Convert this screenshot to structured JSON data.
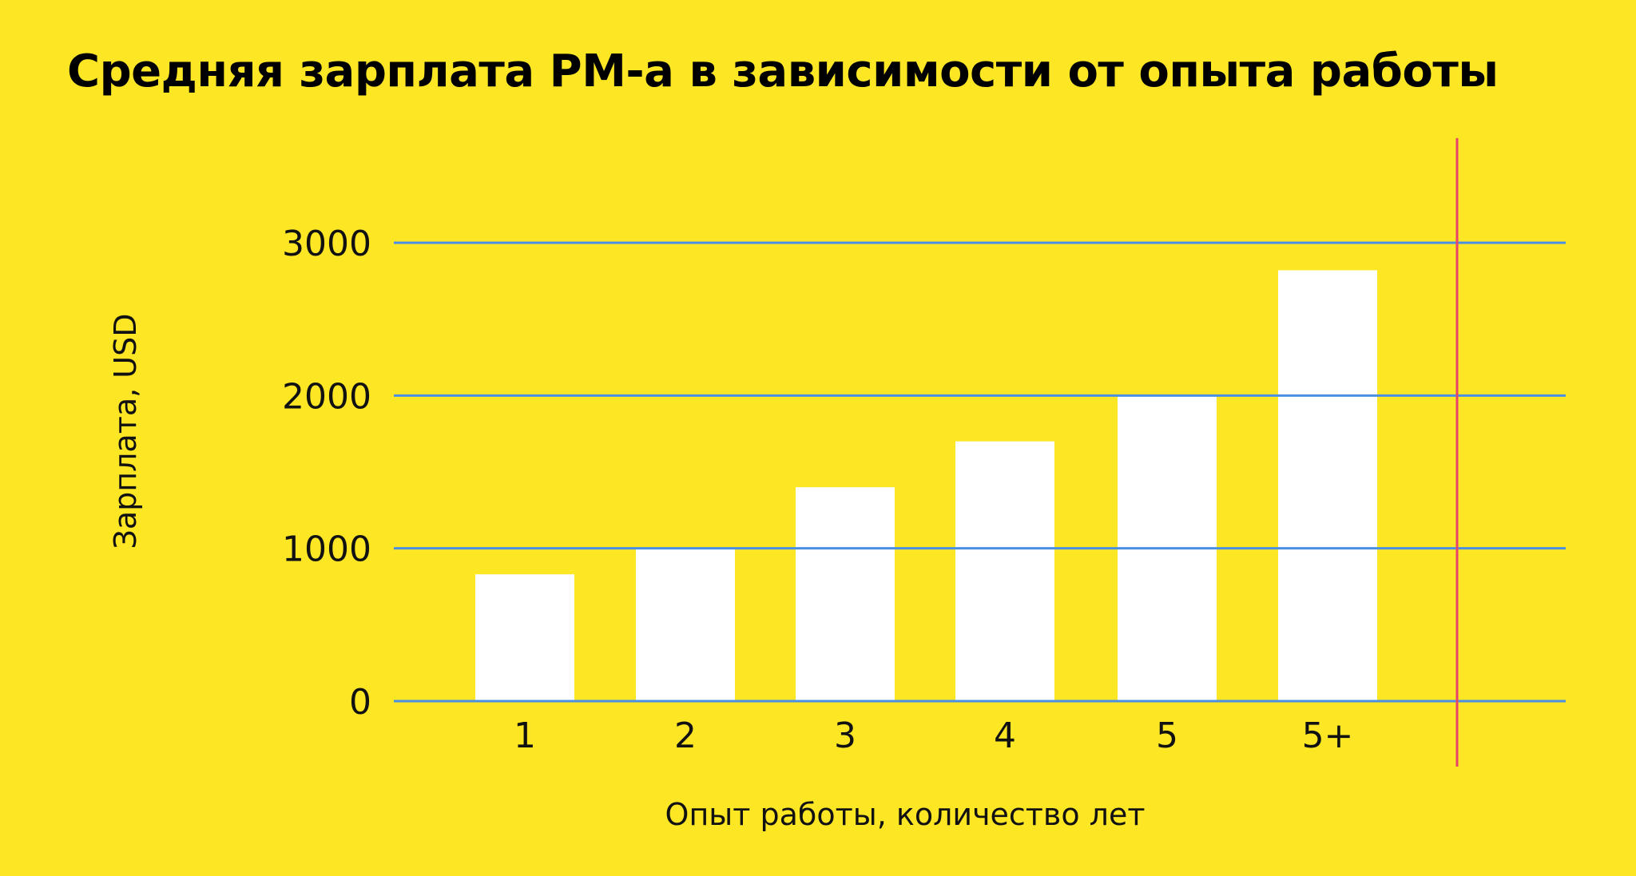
{
  "colors": {
    "background": "#FDE725",
    "bar": "#FFFFFF",
    "gridline": "#4A90E2",
    "marker_line": "#E8436A",
    "text": "#000000"
  },
  "chart_data": {
    "type": "bar",
    "title": "Средняя зарплата PM-а в зависимости от опыта работы",
    "xlabel": "Опыт работы, количество лет",
    "ylabel": "Зарплата, USD",
    "categories": [
      "1",
      "2",
      "3",
      "4",
      "5",
      "5+"
    ],
    "values": [
      830,
      1000,
      1400,
      1700,
      2000,
      2820
    ],
    "ylim": [
      0,
      3000
    ],
    "yticks": [
      "0",
      "1000",
      "2000",
      "3000"
    ],
    "grid": true,
    "legend": "none"
  }
}
